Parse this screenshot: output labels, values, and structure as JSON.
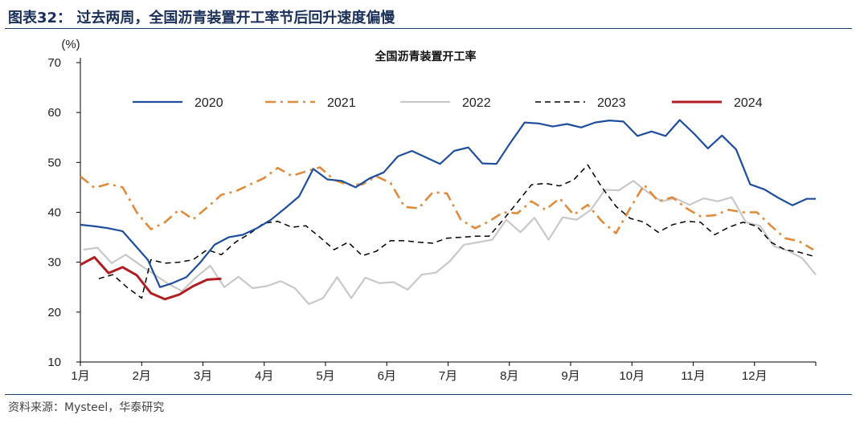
{
  "figure": {
    "title": "图表32：  过去两周，全国沥青装置开工率节后回升速度偏慢",
    "source": "资料来源：Mysteel，华泰研究"
  },
  "chart_data": {
    "type": "line",
    "title": "全国沥青装置开工率",
    "ylabel": "(%)",
    "xlabel": "",
    "ylim": [
      10,
      70
    ],
    "yticks": [
      10,
      20,
      30,
      40,
      50,
      60,
      70
    ],
    "xlim": [
      1,
      13
    ],
    "xticks": [
      {
        "label": "1月",
        "x": 1
      },
      {
        "label": "2月",
        "x": 2
      },
      {
        "label": "3月",
        "x": 3
      },
      {
        "label": "4月",
        "x": 4
      },
      {
        "label": "5月",
        "x": 5
      },
      {
        "label": "6月",
        "x": 6
      },
      {
        "label": "7月",
        "x": 7
      },
      {
        "label": "8月",
        "x": 8
      },
      {
        "label": "9月",
        "x": 9
      },
      {
        "label": "10月",
        "x": 10
      },
      {
        "label": "11月",
        "x": 11
      },
      {
        "label": "12月",
        "x": 12
      }
    ],
    "legend_position": "top",
    "series": [
      {
        "name": "2020",
        "color": "#1f4e9c",
        "style": "solid",
        "x": [
          1.0,
          1.23,
          1.46,
          1.69,
          1.92,
          2.1,
          2.3,
          2.5,
          2.73,
          2.96,
          3.19,
          3.42,
          3.65,
          3.88,
          4.11,
          4.34,
          4.57,
          4.8,
          5.03,
          5.26,
          5.49,
          5.72,
          5.95,
          6.18,
          6.41,
          6.64,
          6.87,
          7.1,
          7.33,
          7.56,
          7.79,
          8.02,
          8.25,
          8.48,
          8.71,
          8.94,
          9.17,
          9.4,
          9.63,
          9.86,
          10.09,
          10.32,
          10.55,
          10.78,
          11.01,
          11.24,
          11.47,
          11.7,
          11.93,
          12.16,
          12.39,
          12.62,
          12.85,
          13.0
        ],
        "y": [
          37.5,
          37.2,
          36.8,
          36.2,
          33.0,
          30.5,
          25.0,
          25.8,
          27.0,
          30.0,
          33.5,
          35.0,
          35.5,
          36.8,
          38.5,
          40.8,
          43.2,
          48.7,
          46.6,
          46.3,
          45.0,
          46.8,
          48.0,
          51.2,
          52.3,
          51.0,
          49.7,
          52.3,
          53.0,
          49.8,
          49.7,
          54.0,
          58.0,
          57.8,
          57.2,
          57.7,
          57.0,
          58.0,
          58.4,
          58.2,
          55.3,
          56.2,
          55.3,
          58.5,
          55.8,
          52.8,
          55.4,
          52.6,
          45.6,
          44.6,
          42.9,
          41.4,
          42.7,
          42.7
        ]
      },
      {
        "name": "2021",
        "color": "#e08b3c",
        "style": "dashdot",
        "x": [
          1.0,
          1.23,
          1.46,
          1.69,
          1.92,
          2.15,
          2.38,
          2.61,
          2.84,
          3.07,
          3.3,
          3.53,
          3.76,
          3.99,
          4.22,
          4.45,
          4.68,
          4.91,
          5.14,
          5.37,
          5.6,
          5.83,
          6.06,
          6.29,
          6.52,
          6.75,
          6.98,
          7.21,
          7.44,
          7.67,
          7.9,
          8.13,
          8.36,
          8.59,
          8.82,
          9.05,
          9.28,
          9.51,
          9.74,
          9.97,
          10.2,
          10.43,
          10.66,
          10.89,
          11.12,
          11.35,
          11.58,
          11.81,
          12.04,
          12.27,
          12.5,
          12.73,
          12.96
        ],
        "y": [
          47.2,
          44.9,
          45.7,
          45.0,
          40.0,
          36.6,
          38.0,
          40.5,
          38.6,
          41.0,
          43.5,
          44.2,
          45.5,
          46.8,
          48.9,
          47.3,
          48.2,
          49.0,
          46.5,
          45.5,
          45.6,
          47.2,
          45.9,
          41.1,
          40.8,
          44.0,
          43.8,
          38.5,
          36.8,
          38.2,
          40.0,
          39.8,
          42.2,
          40.5,
          42.8,
          39.5,
          41.5,
          38.2,
          35.8,
          40.8,
          45.5,
          42.2,
          43.0,
          40.8,
          39.2,
          39.4,
          40.5,
          40.0,
          40.0,
          37.3,
          34.8,
          34.2,
          32.5
        ]
      },
      {
        "name": "2022",
        "color": "#c8c8c8",
        "style": "solid",
        "x": [
          1.05,
          1.28,
          1.51,
          1.74,
          1.97,
          2.2,
          2.43,
          2.66,
          2.89,
          3.12,
          3.35,
          3.58,
          3.81,
          4.04,
          4.27,
          4.5,
          4.73,
          4.96,
          5.19,
          5.42,
          5.65,
          5.88,
          6.11,
          6.34,
          6.57,
          6.8,
          7.03,
          7.26,
          7.49,
          7.72,
          7.95,
          8.18,
          8.41,
          8.64,
          8.87,
          9.1,
          9.33,
          9.56,
          9.79,
          10.02,
          10.25,
          10.48,
          10.71,
          10.94,
          11.17,
          11.4,
          11.63,
          11.86,
          12.09,
          12.32,
          12.55,
          12.78,
          13.0
        ],
        "y": [
          32.5,
          32.9,
          29.8,
          31.5,
          29.5,
          27.6,
          25.7,
          24.2,
          27.0,
          29.3,
          25.0,
          27.1,
          24.8,
          25.2,
          26.2,
          24.8,
          21.6,
          22.8,
          27.0,
          22.8,
          26.9,
          25.8,
          26.0,
          24.5,
          27.5,
          27.9,
          30.2,
          33.5,
          34.0,
          34.5,
          38.5,
          36.0,
          38.9,
          34.5,
          39.0,
          38.5,
          40.5,
          44.5,
          44.4,
          46.3,
          44.1,
          42.2,
          42.8,
          41.5,
          42.8,
          42.2,
          43.0,
          38.0,
          37.3,
          33.2,
          32.3,
          30.8,
          27.5
        ]
      },
      {
        "name": "2023",
        "color": "#000000",
        "style": "dashed",
        "x": [
          1.3,
          1.53,
          1.76,
          2.0,
          2.15,
          2.38,
          2.61,
          2.84,
          3.07,
          3.3,
          3.53,
          3.76,
          3.99,
          4.22,
          4.45,
          4.68,
          4.91,
          5.14,
          5.37,
          5.6,
          5.83,
          6.06,
          6.29,
          6.52,
          6.75,
          6.98,
          7.21,
          7.44,
          7.67,
          7.9,
          8.13,
          8.36,
          8.59,
          8.82,
          9.05,
          9.28,
          9.51,
          9.74,
          9.97,
          10.2,
          10.43,
          10.66,
          10.89,
          11.12,
          11.35,
          11.58,
          11.81,
          12.04,
          12.27,
          12.5,
          12.73,
          12.96
        ],
        "y": [
          26.7,
          27.5,
          25.0,
          22.8,
          30.5,
          29.8,
          30.0,
          30.5,
          32.5,
          31.5,
          34.0,
          35.7,
          37.8,
          38.2,
          37.0,
          37.3,
          35.0,
          32.5,
          34.0,
          31.3,
          32.2,
          34.3,
          34.3,
          34.0,
          33.8,
          34.8,
          35.0,
          35.2,
          35.2,
          38.5,
          42.0,
          45.5,
          45.8,
          45.3,
          46.5,
          49.5,
          45.0,
          41.2,
          38.8,
          38.0,
          36.0,
          37.5,
          38.2,
          38.0,
          35.5,
          37.0,
          38.0,
          37.2,
          34.0,
          32.5,
          32.0,
          31.2
        ]
      },
      {
        "name": "2024",
        "color": "#b01e23",
        "style": "solid",
        "x": [
          1.0,
          1.23,
          1.46,
          1.69,
          1.92,
          2.15,
          2.38,
          2.61,
          2.84,
          3.07,
          3.3
        ],
        "y": [
          29.5,
          31.0,
          27.8,
          29.0,
          27.4,
          23.8,
          22.6,
          23.5,
          25.2,
          26.5,
          26.7
        ]
      }
    ]
  }
}
